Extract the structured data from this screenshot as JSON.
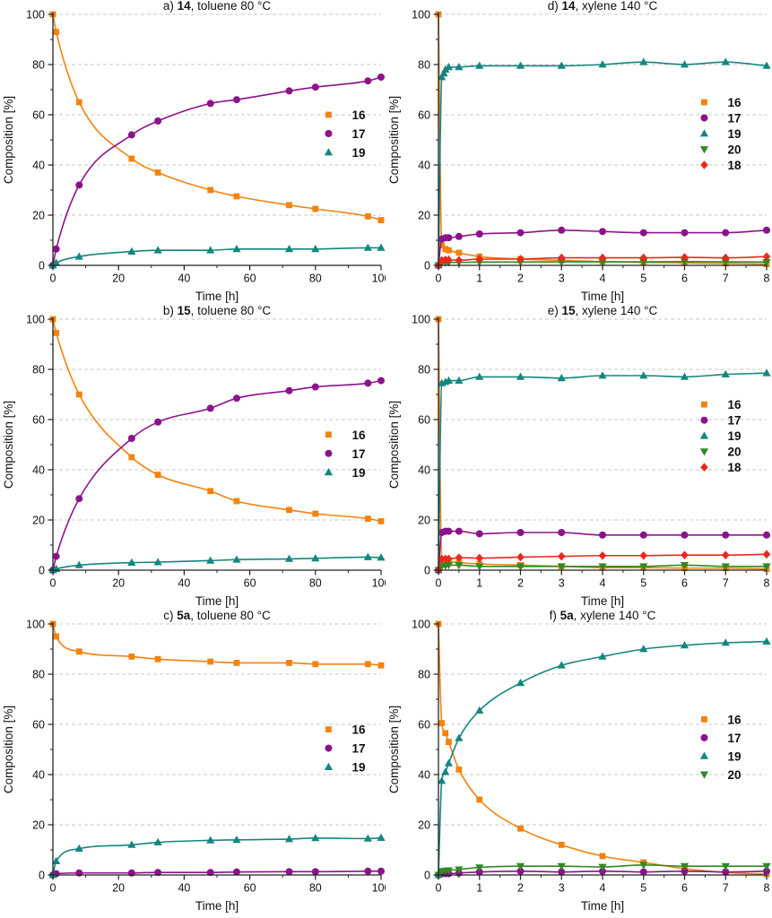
{
  "figure": {
    "description_visible_text_only": true,
    "colors": {
      "s16_orange": "#F5820C",
      "s17_purple": "#8C128C",
      "s19_teal": "#12877F",
      "s20_green": "#2E8B22",
      "s18_red": "#E8291D",
      "grid": "#c9c9c9",
      "axis": "#222222"
    }
  },
  "chart_data": [
    {
      "id": "a",
      "type": "scatter",
      "title": {
        "prefix": "a) ",
        "compound": "14",
        "suffix": ", toluene 80 °C"
      },
      "xlabel": "Time [h]",
      "ylabel": "Composition [%]",
      "xlim": [
        0,
        100
      ],
      "xticks": [
        0,
        20,
        40,
        60,
        80,
        100
      ],
      "ylim": [
        0,
        100
      ],
      "yticks": [
        0,
        20,
        40,
        60,
        80,
        100
      ],
      "grid": "dashed-horizontal",
      "legend": {
        "x": 0.84,
        "y": 0.4,
        "spacing": 21,
        "entries": [
          "16",
          "17",
          "19"
        ]
      },
      "series": [
        {
          "name": "16",
          "marker": "square",
          "color": "#F5820C",
          "x": [
            0,
            1,
            8,
            24,
            32,
            48,
            56,
            72,
            80,
            96,
            100
          ],
          "y": [
            100,
            93,
            65,
            42.5,
            37,
            30,
            27.5,
            24,
            22.5,
            19.5,
            18
          ]
        },
        {
          "name": "17",
          "marker": "circle",
          "color": "#8C128C",
          "x": [
            0,
            1,
            8,
            24,
            32,
            48,
            56,
            72,
            80,
            96,
            100
          ],
          "y": [
            0,
            6.5,
            32,
            52,
            57.5,
            64.5,
            66,
            69.5,
            71,
            73.5,
            75
          ]
        },
        {
          "name": "19",
          "marker": "triangle-up",
          "color": "#12877F",
          "x": [
            0,
            1,
            8,
            24,
            32,
            48,
            56,
            72,
            80,
            96,
            100
          ],
          "y": [
            0,
            1,
            3.5,
            5.5,
            6,
            6,
            6.5,
            6.5,
            6.5,
            7,
            7
          ]
        }
      ]
    },
    {
      "id": "d",
      "type": "scatter",
      "title": {
        "prefix": "d) ",
        "compound": "14",
        "suffix": ", xylene 140 °C"
      },
      "xlabel": "Time [h]",
      "ylabel": "Composition [%]",
      "xlim": [
        0,
        8
      ],
      "xticks": [
        0,
        1,
        2,
        3,
        4,
        5,
        6,
        7,
        8
      ],
      "ylim": [
        0,
        100
      ],
      "yticks": [
        0,
        20,
        40,
        60,
        80,
        100
      ],
      "grid": "dashed-horizontal",
      "legend": {
        "x": 0.81,
        "y": 0.35,
        "spacing": 17.5,
        "entries": [
          "16",
          "17",
          "19",
          "20",
          "18"
        ]
      },
      "series": [
        {
          "name": "16",
          "marker": "square",
          "color": "#F5820C",
          "x": [
            0,
            0.08,
            0.17,
            0.25,
            0.5,
            1,
            2,
            3,
            4,
            5,
            6,
            7,
            8
          ],
          "y": [
            100,
            8,
            6.5,
            6,
            5,
            3.5,
            2.5,
            2,
            1.5,
            1.2,
            1,
            0.8,
            0.5
          ]
        },
        {
          "name": "17",
          "marker": "circle",
          "color": "#8C128C",
          "x": [
            0,
            0.08,
            0.17,
            0.25,
            0.5,
            1,
            2,
            3,
            4,
            5,
            6,
            7,
            8
          ],
          "y": [
            0,
            10.5,
            11,
            11,
            11.5,
            12.5,
            13,
            14,
            13.5,
            13,
            13,
            13,
            14
          ]
        },
        {
          "name": "19",
          "marker": "triangle-up",
          "color": "#12877F",
          "x": [
            0,
            0.08,
            0.13,
            0.17,
            0.25,
            0.5,
            1,
            2,
            3,
            4,
            5,
            6,
            7,
            8
          ],
          "y": [
            0,
            75,
            76.5,
            78,
            79,
            79,
            79.5,
            79.5,
            79.5,
            80,
            81,
            80,
            81,
            79.5
          ]
        },
        {
          "name": "20",
          "marker": "triangle-down",
          "color": "#2E8B22",
          "x": [
            0,
            0.08,
            0.17,
            0.25,
            0.5,
            1,
            2,
            3,
            4,
            5,
            6,
            7,
            8
          ],
          "y": [
            0,
            1,
            1.2,
            1.2,
            1.2,
            1.3,
            1.3,
            1.4,
            1.4,
            1.4,
            1.5,
            1.4,
            1.3
          ]
        },
        {
          "name": "18",
          "marker": "diamond",
          "color": "#E8291D",
          "x": [
            0,
            0.08,
            0.17,
            0.25,
            0.5,
            1,
            2,
            3,
            4,
            5,
            6,
            7,
            8
          ],
          "y": [
            0,
            2,
            2.2,
            2.2,
            2,
            2.5,
            2.5,
            3,
            3,
            3,
            3.2,
            3,
            3.5
          ]
        }
      ]
    },
    {
      "id": "b",
      "type": "scatter",
      "title": {
        "prefix": "b) ",
        "compound": "15",
        "suffix": ", toluene 80 °C"
      },
      "xlabel": "Time [h]",
      "ylabel": "Composition [%]",
      "xlim": [
        0,
        100
      ],
      "xticks": [
        0,
        20,
        40,
        60,
        80,
        100
      ],
      "ylim": [
        0,
        100
      ],
      "yticks": [
        0,
        20,
        40,
        60,
        80,
        100
      ],
      "grid": "dashed-horizontal",
      "legend": {
        "x": 0.84,
        "y": 0.46,
        "spacing": 21,
        "entries": [
          "16",
          "17",
          "19"
        ]
      },
      "series": [
        {
          "name": "16",
          "marker": "square",
          "color": "#F5820C",
          "x": [
            0,
            1,
            8,
            24,
            32,
            48,
            56,
            72,
            80,
            96,
            100
          ],
          "y": [
            100,
            94.5,
            70,
            45,
            38,
            31.5,
            27.5,
            24,
            22.5,
            20.5,
            19.5
          ]
        },
        {
          "name": "17",
          "marker": "circle",
          "color": "#8C128C",
          "x": [
            0,
            1,
            8,
            24,
            32,
            48,
            56,
            72,
            80,
            96,
            100
          ],
          "y": [
            0,
            5.5,
            28.5,
            52.5,
            59,
            64.5,
            68.5,
            71.5,
            73,
            74.5,
            75.5
          ]
        },
        {
          "name": "19",
          "marker": "triangle-up",
          "color": "#12877F",
          "x": [
            0,
            1,
            8,
            24,
            32,
            48,
            56,
            72,
            80,
            96,
            100
          ],
          "y": [
            0,
            0.5,
            2,
            3,
            3.2,
            3.8,
            4.2,
            4.5,
            4.7,
            5.2,
            5
          ]
        }
      ]
    },
    {
      "id": "e",
      "type": "scatter",
      "title": {
        "prefix": "e) ",
        "compound": "15",
        "suffix": ", xylene 140 °C"
      },
      "xlabel": "Time [h]",
      "ylabel": "Composition [%]",
      "xlim": [
        0,
        8
      ],
      "xticks": [
        0,
        1,
        2,
        3,
        4,
        5,
        6,
        7,
        8
      ],
      "ylim": [
        0,
        100
      ],
      "yticks": [
        0,
        20,
        40,
        60,
        80,
        100
      ],
      "grid": "dashed-horizontal",
      "legend": {
        "x": 0.81,
        "y": 0.34,
        "spacing": 17.5,
        "entries": [
          "16",
          "17",
          "19",
          "20",
          "18"
        ]
      },
      "series": [
        {
          "name": "16",
          "marker": "square",
          "color": "#F5820C",
          "x": [
            0,
            0.08,
            0.17,
            0.25,
            0.5,
            1,
            2,
            3,
            4,
            5,
            6,
            7,
            8
          ],
          "y": [
            100,
            4,
            3.5,
            3.5,
            3,
            2.5,
            2,
            1.5,
            1,
            1,
            0.8,
            0.8,
            0.5
          ]
        },
        {
          "name": "17",
          "marker": "circle",
          "color": "#8C128C",
          "x": [
            0,
            0.08,
            0.17,
            0.25,
            0.5,
            1,
            2,
            3,
            4,
            5,
            6,
            7,
            8
          ],
          "y": [
            0,
            15,
            15.5,
            15.5,
            15.5,
            14.5,
            15,
            15,
            14,
            14,
            14,
            14,
            14
          ]
        },
        {
          "name": "19",
          "marker": "triangle-up",
          "color": "#12877F",
          "x": [
            0,
            0.08,
            0.17,
            0.25,
            0.5,
            1,
            2,
            3,
            4,
            5,
            6,
            7,
            8
          ],
          "y": [
            0,
            74.5,
            75,
            75.5,
            75.5,
            77,
            77,
            76.5,
            77.5,
            77.5,
            77,
            78,
            78.5
          ]
        },
        {
          "name": "20",
          "marker": "triangle-down",
          "color": "#2E8B22",
          "x": [
            0,
            0.08,
            0.17,
            0.25,
            0.5,
            1,
            2,
            3,
            4,
            5,
            6,
            7,
            8
          ],
          "y": [
            0,
            1.5,
            1.8,
            2,
            2,
            1.5,
            1.5,
            1.5,
            1.5,
            1.5,
            2,
            1.5,
            1.5
          ]
        },
        {
          "name": "18",
          "marker": "diamond",
          "color": "#E8291D",
          "x": [
            0,
            0.08,
            0.17,
            0.25,
            0.5,
            1,
            2,
            3,
            4,
            5,
            6,
            7,
            8
          ],
          "y": [
            0,
            4.5,
            4.5,
            4.5,
            5,
            4.8,
            5.2,
            5.5,
            5.8,
            5.8,
            6,
            6,
            6.3
          ]
        }
      ]
    },
    {
      "id": "c",
      "type": "scatter",
      "title": {
        "prefix": "c) ",
        "compound": "5a",
        "suffix": ", toluene 80 °C"
      },
      "xlabel": "Time [h]",
      "ylabel": "Composition [%]",
      "xlim": [
        0,
        100
      ],
      "xticks": [
        0,
        20,
        40,
        60,
        80,
        100
      ],
      "ylim": [
        0,
        100
      ],
      "yticks": [
        0,
        20,
        40,
        60,
        80,
        100
      ],
      "grid": "dashed-horizontal",
      "legend": {
        "x": 0.84,
        "y": 0.42,
        "spacing": 21,
        "entries": [
          "16",
          "17",
          "19"
        ]
      },
      "series": [
        {
          "name": "16",
          "marker": "square",
          "color": "#F5820C",
          "x": [
            0,
            1,
            8,
            24,
            32,
            48,
            56,
            72,
            80,
            96,
            100
          ],
          "y": [
            100,
            95,
            89,
            87,
            86,
            85,
            84.5,
            84.5,
            84,
            84,
            83.5
          ]
        },
        {
          "name": "17",
          "marker": "circle",
          "color": "#8C128C",
          "x": [
            0,
            1,
            8,
            24,
            32,
            48,
            56,
            72,
            80,
            96,
            100
          ],
          "y": [
            0,
            0.5,
            0.8,
            0.8,
            1,
            1,
            1.2,
            1.3,
            1.3,
            1.5,
            1.5
          ]
        },
        {
          "name": "19",
          "marker": "triangle-up",
          "color": "#12877F",
          "x": [
            0,
            1,
            8,
            24,
            32,
            48,
            56,
            72,
            80,
            96,
            100
          ],
          "y": [
            0,
            5.5,
            10.5,
            12,
            13,
            13.8,
            14,
            14.3,
            14.7,
            14.5,
            14.8
          ]
        }
      ]
    },
    {
      "id": "f",
      "type": "scatter",
      "title": {
        "prefix": "f) ",
        "compound": "5a",
        "suffix": ", xylene 140 °C"
      },
      "xlabel": "Time [h]",
      "ylabel": "Composition [%]",
      "xlim": [
        0,
        8
      ],
      "xticks": [
        0,
        1,
        2,
        3,
        4,
        5,
        6,
        7,
        8
      ],
      "ylim": [
        0,
        100
      ],
      "yticks": [
        0,
        20,
        40,
        60,
        80,
        100
      ],
      "grid": "dashed-horizontal",
      "legend": {
        "x": 0.81,
        "y": 0.38,
        "spacing": 20.5,
        "entries": [
          "16",
          "17",
          "19",
          "20"
        ]
      },
      "series": [
        {
          "name": "16",
          "marker": "square",
          "color": "#F5820C",
          "x": [
            0,
            0.08,
            0.17,
            0.25,
            0.5,
            1,
            2,
            3,
            4,
            5,
            6,
            7,
            8
          ],
          "y": [
            100,
            60.5,
            56.5,
            53,
            42,
            30,
            18.5,
            12,
            7.5,
            5,
            2.5,
            1,
            0.3
          ]
        },
        {
          "name": "17",
          "marker": "circle",
          "color": "#8C128C",
          "x": [
            0,
            0.08,
            0.17,
            0.25,
            0.5,
            1,
            2,
            3,
            4,
            5,
            6,
            7,
            8
          ],
          "y": [
            0,
            0.5,
            0.5,
            0.5,
            0.8,
            1.2,
            1.5,
            1.2,
            1.5,
            1.2,
            1.5,
            1.2,
            1.5
          ]
        },
        {
          "name": "19",
          "marker": "triangle-up",
          "color": "#12877F",
          "x": [
            0,
            0.08,
            0.17,
            0.25,
            0.5,
            1,
            2,
            3,
            4,
            5,
            6,
            7,
            8
          ],
          "y": [
            0,
            37.5,
            41,
            44.5,
            54.5,
            65.5,
            76.5,
            83.5,
            87,
            90,
            91.5,
            92.5,
            93
          ]
        },
        {
          "name": "20",
          "marker": "triangle-down",
          "color": "#2E8B22",
          "x": [
            0,
            0.08,
            0.17,
            0.25,
            0.5,
            1,
            2,
            3,
            4,
            5,
            6,
            7,
            8
          ],
          "y": [
            0,
            1.5,
            1.7,
            1.8,
            2.2,
            3,
            3.5,
            3.5,
            3.2,
            4,
            3.5,
            3.5,
            3.5
          ]
        }
      ]
    }
  ]
}
